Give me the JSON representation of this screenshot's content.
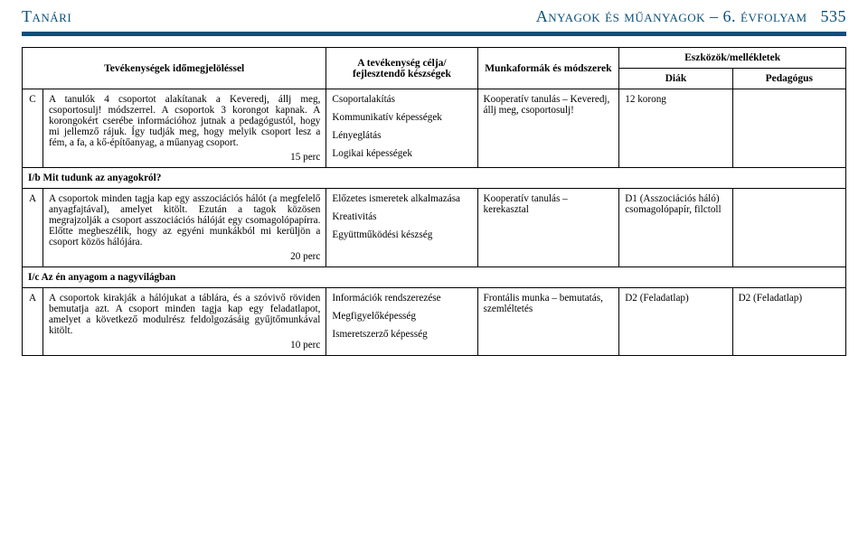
{
  "header": {
    "left": "Tanári",
    "right_title": "Anyagok és műanyagok – 6. évfolyam",
    "page_number": "535"
  },
  "table": {
    "columns": {
      "activity": "Tevékenységek időmegjelöléssel",
      "skills": "A tevékenység célja/ fejlesztendő készségek",
      "methods": "Munkaformák és módszerek",
      "tools_group": "Eszközök/mellékletek",
      "diak": "Diák",
      "pedagogus": "Pedagógus"
    },
    "rows": [
      {
        "letter": "C",
        "activity": "A tanulók 4 csoportot alakítanak a Keveredj, állj meg, csoportosulj! módszerrel. A csoportok 3 korongot kapnak. A korongokért cserébe információhoz jutnak a pedagógustól, hogy mi jellemző rájuk. Így tudják meg, hogy melyik csoport lesz a fém, a fa, a kő-építőanyag, a műanyag csoport.",
        "time": "15 perc",
        "skills": [
          "Csoportalakítás",
          "Kommunikatív képességek",
          "Lényeglátás",
          "Logikai képességek"
        ],
        "methods": "Kooperatív tanulás – Keveredj, állj meg, csoportosulj!",
        "diak": "12 korong",
        "pedagogus": ""
      },
      {
        "section": "I/b Mit tudunk az anyagokról?"
      },
      {
        "letter": "A",
        "activity": "A csoportok minden tagja kap egy asszociációs hálót (a megfelelő anyagfajtával), amelyet kitölt. Ezután a tagok közösen megrajzolják a csoport asszociációs hálóját egy csomagolópapírra. Előtte megbeszélik, hogy az egyéni munkákból mi kerüljön a csoport közös hálójára.",
        "time": "20 perc",
        "skills": [
          "Előzetes ismeretek alkalmazása",
          "Kreativitás",
          "Együttműködési készség"
        ],
        "methods": "Kooperatív tanulás – kerekasztal",
        "diak": "D1 (Asszociációs háló) csomagolópapír, filctoll",
        "pedagogus": ""
      },
      {
        "section": "I/c Az én anyagom a nagyvilágban"
      },
      {
        "letter": "A",
        "activity": "A csoportok kirakják a hálójukat a táblára, és a szóvivő röviden bemutatja azt. A csoport minden tagja kap egy feladatlapot, amelyet a következő modulrész feldolgozásáig gyűjtőmunkával kitölt.",
        "time": "10 perc",
        "skills": [
          "Információk rendszerezése",
          "Megfigyelőképesség",
          "Ismeretszerző képesség"
        ],
        "methods": "Frontális munka – bemutatás, szemléltetés",
        "diak": "D2 (Feladatlap)",
        "pedagogus": "D2 (Feladatlap)"
      }
    ]
  }
}
